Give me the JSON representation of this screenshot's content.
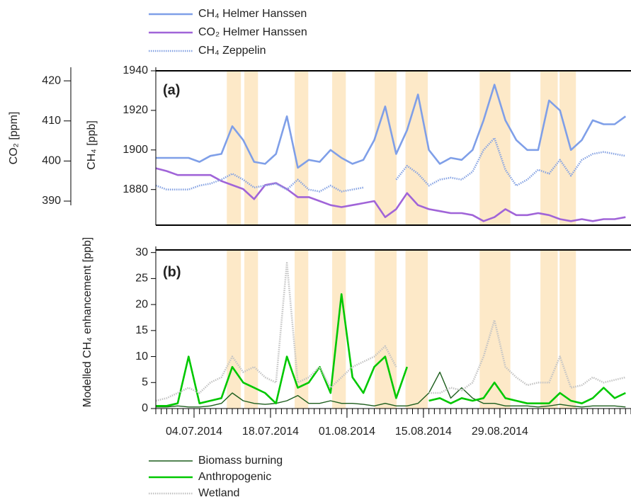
{
  "chart_data": [
    {
      "type": "line",
      "annotation": "(a)",
      "ylabel": "CH₄ [ppb]",
      "y2label": "CO₂ [ppm]",
      "x": [
        "2014-06-27",
        "2014-06-29",
        "2014-07-01",
        "2014-07-03",
        "2014-07-05",
        "2014-07-07",
        "2014-07-09",
        "2014-07-11",
        "2014-07-13",
        "2014-07-15",
        "2014-07-17",
        "2014-07-19",
        "2014-07-21",
        "2014-07-23",
        "2014-07-25",
        "2014-07-27",
        "2014-07-29",
        "2014-07-31",
        "2014-08-02",
        "2014-08-04",
        "2014-08-06",
        "2014-08-08",
        "2014-08-10",
        "2014-08-12",
        "2014-08-14",
        "2014-08-16",
        "2014-08-18",
        "2014-08-20",
        "2014-08-22",
        "2014-08-24",
        "2014-08-26",
        "2014-08-28",
        "2014-08-30",
        "2014-09-01",
        "2014-09-03",
        "2014-09-05",
        "2014-09-07",
        "2014-09-09",
        "2014-09-11",
        "2014-09-13",
        "2014-09-15",
        "2014-09-17",
        "2014-09-19",
        "2014-09-21"
      ],
      "xlim": [
        "2014-06-27",
        "2014-09-22"
      ],
      "xticks": [
        {
          "value": "2014-07-04",
          "label": "04.07.2014"
        },
        {
          "value": "2014-07-18",
          "label": "18.07.2014"
        },
        {
          "value": "2014-08-01",
          "label": "01.08.2014"
        },
        {
          "value": "2014-08-15",
          "label": "15.08.2014"
        },
        {
          "value": "2014-08-29",
          "label": "29.08.2014"
        }
      ],
      "ylim": [
        1862,
        1940
      ],
      "yticks": [
        1880,
        1900,
        1920,
        1940
      ],
      "y2lim": [
        384,
        422.5
      ],
      "y2ticks": [
        390,
        400,
        410,
        420
      ],
      "highlight_periods": [
        [
          "2014-07-10T00:00",
          "2014-07-12T14:00"
        ],
        [
          "2014-07-13T05:00",
          "2014-07-15T17:00"
        ],
        [
          "2014-07-22T10:00",
          "2014-07-24T22:00"
        ],
        [
          "2014-07-29T07:00",
          "2014-07-31T19:00"
        ],
        [
          "2014-08-06T02:00",
          "2014-08-10T02:00"
        ],
        [
          "2014-08-11T17:00",
          "2014-08-15T19:00"
        ],
        [
          "2014-08-25T07:00",
          "2014-08-30T22:00"
        ],
        [
          "2014-09-05T10:00",
          "2014-09-08T14:00"
        ],
        [
          "2014-09-08T22:00",
          "2014-09-11T22:00"
        ]
      ],
      "highlight_color": "#fde9c8",
      "series": [
        {
          "name": "CH₄ Helmer Hanssen",
          "color": "#7f9fe8",
          "style": "solid",
          "values": [
            1896,
            1896,
            1896,
            1896,
            1894,
            1897,
            1898,
            1912,
            1905,
            1894,
            1893,
            1898,
            1917,
            1891,
            1895,
            1894,
            1900,
            1896,
            1893,
            1895,
            1905,
            1922,
            1898,
            1910,
            1928,
            1900,
            1893,
            1896,
            1895,
            1900,
            1915,
            1933,
            1915,
            1905,
            1900,
            1900,
            1925,
            1920,
            1900,
            1905,
            1915,
            1913,
            1913,
            1917
          ]
        },
        {
          "name": "CO₂ Helmer Hanssen",
          "color": "#a064d8",
          "style": "solid",
          "axis": "y2",
          "values": [
            398.2,
            397.5,
            396.5,
            396.5,
            396.5,
            396.5,
            395,
            394,
            393,
            390.5,
            394,
            394.5,
            393,
            391,
            391,
            390,
            389,
            388.5,
            389,
            389.5,
            390,
            386,
            388,
            392,
            389,
            388,
            387.5,
            387,
            387,
            386.5,
            385,
            386,
            388,
            386.5,
            386.5,
            387,
            386.5,
            385.5,
            385,
            385.5,
            385,
            385.5,
            385.5,
            386
          ]
        },
        {
          "name": "CH₄ Zeppelin",
          "color": "#86a3e3",
          "style": "dotted",
          "values": [
            1882,
            1880,
            1880,
            1880,
            1882,
            1883,
            1885,
            1888,
            1885,
            1881,
            1882,
            1883,
            1880,
            1885,
            1880,
            1879,
            1882,
            1879,
            1880,
            1881,
            null,
            null,
            1885,
            1892,
            1888,
            1882,
            1885,
            1886,
            1885,
            1889,
            1900,
            1906,
            1890,
            1882,
            1885,
            1890,
            1888,
            1895,
            1887,
            1895,
            1898,
            1899,
            1898,
            1897
          ]
        }
      ]
    },
    {
      "type": "line",
      "annotation": "(b)",
      "ylabel": "Modelled CH₄ enhancement [ppb]",
      "x": [
        "2014-06-27",
        "2014-06-29",
        "2014-07-01",
        "2014-07-03",
        "2014-07-05",
        "2014-07-07",
        "2014-07-09",
        "2014-07-11",
        "2014-07-13",
        "2014-07-15",
        "2014-07-17",
        "2014-07-19",
        "2014-07-21",
        "2014-07-23",
        "2014-07-25",
        "2014-07-27",
        "2014-07-29",
        "2014-07-31",
        "2014-08-02",
        "2014-08-04",
        "2014-08-06",
        "2014-08-08",
        "2014-08-10",
        "2014-08-12",
        "2014-08-14",
        "2014-08-16",
        "2014-08-18",
        "2014-08-20",
        "2014-08-22",
        "2014-08-24",
        "2014-08-26",
        "2014-08-28",
        "2014-08-30",
        "2014-09-01",
        "2014-09-03",
        "2014-09-05",
        "2014-09-07",
        "2014-09-09",
        "2014-09-11",
        "2014-09-13",
        "2014-09-15",
        "2014-09-17",
        "2014-09-19",
        "2014-09-21"
      ],
      "xlim": [
        "2014-06-27",
        "2014-09-22"
      ],
      "ylim": [
        0,
        30.5
      ],
      "yticks": [
        0,
        5,
        10,
        15,
        20,
        25,
        30
      ],
      "series": [
        {
          "name": "Biomass burning",
          "color": "#1d5e1d",
          "style": "thin",
          "values": [
            0.3,
            0.3,
            0.5,
            0.3,
            0.3,
            0.5,
            1,
            3,
            1.5,
            1,
            0.8,
            1,
            1.5,
            2.5,
            1,
            1,
            1.5,
            1,
            1,
            0.8,
            0.5,
            1,
            0.5,
            0.5,
            1,
            3,
            7,
            2,
            4,
            2,
            1,
            1,
            0.5,
            0.5,
            0.5,
            0.3,
            0.5,
            0.8,
            0.5,
            0.3,
            0.5,
            0.5,
            0.5,
            0.3
          ]
        },
        {
          "name": "Anthropogenic",
          "color": "#00c800",
          "style": "solid",
          "values": [
            0.5,
            0.5,
            1,
            10,
            1,
            1.5,
            2,
            8,
            5,
            4,
            3,
            1,
            10,
            4,
            5,
            8,
            3,
            22,
            6,
            3,
            8,
            10,
            2,
            8,
            null,
            1.5,
            2,
            1,
            2,
            1.5,
            2,
            5,
            2,
            1.5,
            1,
            1,
            1,
            3,
            1.5,
            1,
            2,
            4,
            2,
            3
          ]
        },
        {
          "name": "Wetland",
          "color": "#c4c4c4",
          "style": "dotted",
          "values": [
            1.5,
            2,
            3,
            4,
            3,
            5,
            6,
            10,
            7,
            8,
            6,
            5,
            28,
            5,
            6,
            8,
            4,
            6,
            8,
            9,
            10,
            12,
            8,
            null,
            null,
            3,
            3,
            4,
            3.5,
            5,
            10,
            17,
            8,
            6,
            4.5,
            5,
            5,
            10,
            4,
            4.5,
            6,
            5,
            5.5,
            6
          ]
        }
      ]
    }
  ]
}
